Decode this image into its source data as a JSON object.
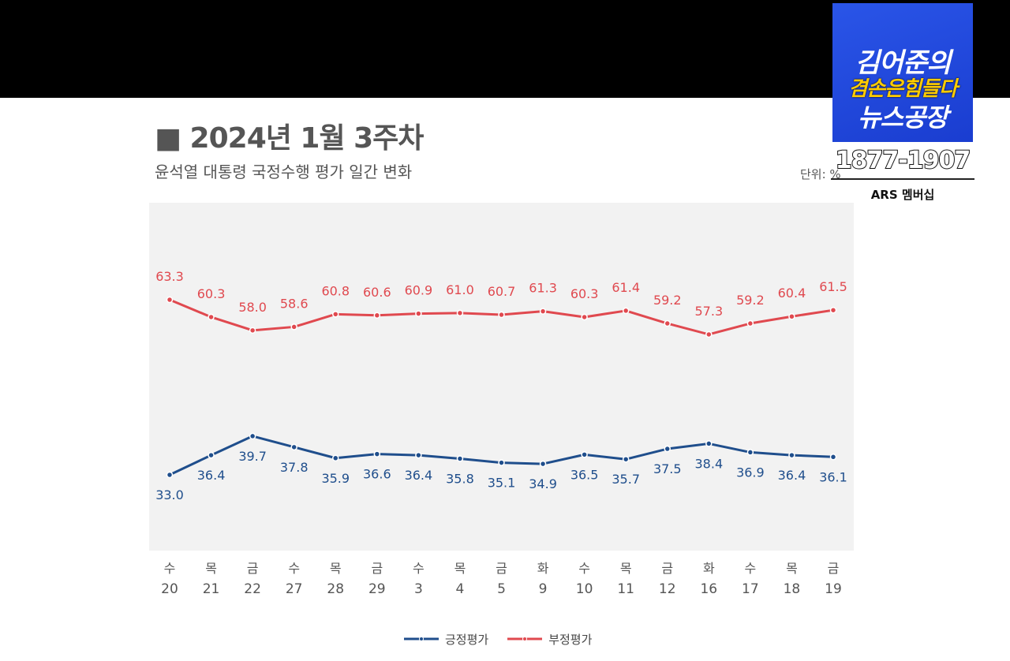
{
  "header": {
    "title": "■ 2024년 1월 3주차",
    "subtitle": "윤석열 대통령 국정수행 평가 일간 변화",
    "unit": "단위: %"
  },
  "overlay": {
    "logo_line1": "김어준의",
    "logo_line2": "겸손은힘들다",
    "logo_line3": "뉴스공장",
    "phone": "1877-1907",
    "membership": "ARS 멤버십"
  },
  "colors": {
    "positive": "#1f4e8c",
    "negative": "#e0494f",
    "plot_bg": "#f2f2f2"
  },
  "chart_data": {
    "type": "line",
    "title": "2024년 1월 3주차",
    "subtitle": "윤석열 대통령 국정수행 평가 일간 변화",
    "categories_weekday": [
      "수",
      "목",
      "금",
      "수",
      "목",
      "금",
      "수",
      "목",
      "금",
      "화",
      "수",
      "목",
      "금",
      "화",
      "수",
      "목",
      "금"
    ],
    "categories_day": [
      "20",
      "21",
      "22",
      "27",
      "28",
      "29",
      "3",
      "4",
      "5",
      "9",
      "10",
      "11",
      "12",
      "16",
      "17",
      "18",
      "19"
    ],
    "series": [
      {
        "name": "부정평가",
        "values": [
          63.3,
          60.3,
          58.0,
          58.6,
          60.8,
          60.6,
          60.9,
          61.0,
          60.7,
          61.3,
          60.3,
          61.4,
          59.2,
          57.3,
          59.2,
          60.4,
          61.5
        ]
      },
      {
        "name": "긍정평가",
        "values": [
          33.0,
          36.4,
          39.7,
          37.8,
          35.9,
          36.6,
          36.4,
          35.8,
          35.1,
          34.9,
          36.5,
          35.7,
          37.5,
          38.4,
          36.9,
          36.4,
          36.1
        ]
      }
    ],
    "legend": {
      "position": "bottom",
      "entries": [
        "긍정평가",
        "부정평가"
      ]
    },
    "grid": false
  }
}
